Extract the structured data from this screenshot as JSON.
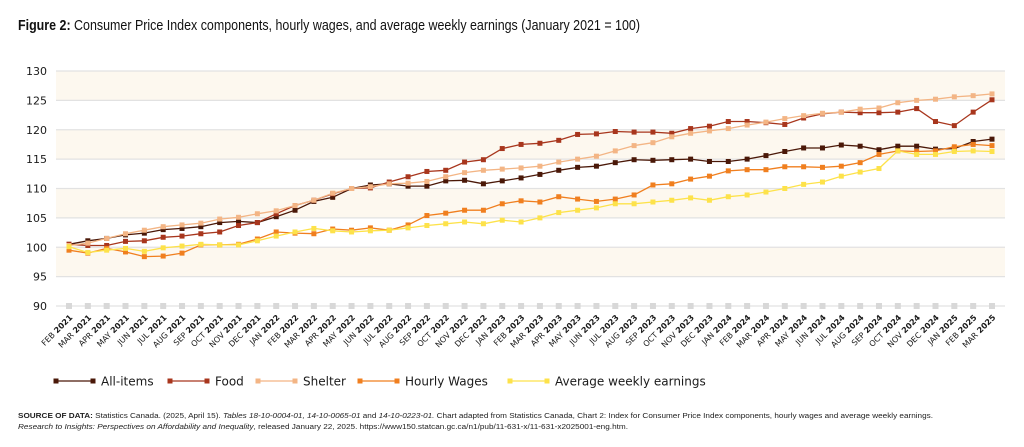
{
  "title": {
    "bold": "Figure 2:",
    "text": " Consumer Price Index components, hourly wages, and average weekly earnings (January 2021 = 100)"
  },
  "source": {
    "label": "SOURCE OF DATA:",
    "line1_a": " Statistics Canada. (2025, April 15). ",
    "line1_b": "Tables 18-10-0004-01, 14-10-0065-01",
    "line1_c": " and ",
    "line1_d": "14-10-0223-01.",
    "line1_e": "  Chart adapted from Statistics Canada, Chart 2: Index for Consumer Price Index components, hourly wages and average weekly earnings.",
    "line2_a": "Research to Insights: Perspectives on Affordability and Inequality",
    "line2_b": ", released January 22, 2025. https://www150.statcan.gc.ca/n1/pub/11-631-x/11-631-x2025001-eng.htm."
  },
  "chart_data": {
    "type": "line",
    "title": "Consumer Price Index components, hourly wages, and average weekly earnings (January 2021 = 100)",
    "xlabel": "",
    "ylabel": "",
    "ylim": [
      90,
      130
    ],
    "yticks": [
      90,
      95,
      100,
      105,
      110,
      115,
      120,
      125,
      130
    ],
    "grid": true,
    "alternating_bands": true,
    "band_color": "#fdf8ef",
    "legend_position": "bottom",
    "categories": [
      "FEB 2021",
      "MAR 2021",
      "APR 2021",
      "MAY 2021",
      "JUN 2021",
      "JUL 2021",
      "AUG 2021",
      "SEP 2021",
      "OCT 2021",
      "NOV 2021",
      "DEC 2021",
      "JAN 2022",
      "FEB 2022",
      "MAR 2022",
      "APR 2022",
      "MAY 2022",
      "JUN 2022",
      "JUL 2022",
      "AUG 2022",
      "SEP 2022",
      "OCT 2022",
      "NOV 2022",
      "DEC 2022",
      "JAN 2023",
      "FEB 2023",
      "MAR 2023",
      "APR 2023",
      "MAY 2023",
      "JUN 2023",
      "JUL 2023",
      "AUG 2023",
      "SEP 2023",
      "OCT 2023",
      "NOV 2023",
      "DEC 2023",
      "JAN 2024",
      "FEB 2024",
      "MAR 2024",
      "APR 2024",
      "MAY 2024",
      "JUN 2024",
      "JUL 2024",
      "AUG 2024",
      "SEP 2024",
      "OCT 2024",
      "NOV 2024",
      "DEC 2024",
      "JAN 2025",
      "FEB 2025",
      "MAR 2025"
    ],
    "series": [
      {
        "name": "All-items",
        "color": "#4a1808",
        "values": [
          100.5,
          101.1,
          101.5,
          102.1,
          102.4,
          103.0,
          103.2,
          103.5,
          104.2,
          104.4,
          104.2,
          105.2,
          106.3,
          107.8,
          108.5,
          110.0,
          110.6,
          110.8,
          110.4,
          110.4,
          111.3,
          111.4,
          110.8,
          111.3,
          111.8,
          112.4,
          113.1,
          113.6,
          113.8,
          114.4,
          114.9,
          114.8,
          114.9,
          115.0,
          114.6,
          114.6,
          115.0,
          115.6,
          116.3,
          116.9,
          116.9,
          117.4,
          117.2,
          116.6,
          117.2,
          117.2,
          116.7,
          116.8,
          118.0,
          118.4
        ]
      },
      {
        "name": "Food",
        "color": "#a8361d",
        "values": [
          100.5,
          100.3,
          100.3,
          101.0,
          101.1,
          101.7,
          101.9,
          102.3,
          102.6,
          103.7,
          104.2,
          105.7,
          107.1,
          108.0,
          109.1,
          110.0,
          110.1,
          111.1,
          112.0,
          112.9,
          113.1,
          114.5,
          114.9,
          116.8,
          117.5,
          117.7,
          118.2,
          119.2,
          119.3,
          119.7,
          119.6,
          119.6,
          119.4,
          120.2,
          120.6,
          121.4,
          121.4,
          121.2,
          120.9,
          122.0,
          122.7,
          123.0,
          122.9,
          122.9,
          123.0,
          123.6,
          121.4,
          120.7,
          123.0,
          125.1
        ]
      },
      {
        "name": "Shelter",
        "color": "#f3b585",
        "values": [
          100.3,
          100.7,
          101.5,
          102.3,
          102.9,
          103.5,
          103.8,
          104.1,
          104.8,
          105.1,
          105.7,
          106.2,
          107.1,
          108.0,
          109.2,
          110.0,
          110.3,
          110.8,
          110.9,
          111.2,
          112.0,
          112.7,
          113.1,
          113.3,
          113.5,
          113.8,
          114.5,
          115.0,
          115.5,
          116.4,
          117.3,
          117.8,
          118.8,
          119.4,
          119.8,
          120.2,
          120.8,
          121.3,
          121.9,
          122.4,
          122.8,
          123.0,
          123.5,
          123.7,
          124.6,
          125.0,
          125.2,
          125.6,
          125.8,
          126.1
        ]
      },
      {
        "name": "Hourly Wages",
        "color": "#f07f1f",
        "values": [
          99.5,
          99.0,
          99.8,
          99.2,
          98.4,
          98.5,
          99.0,
          100.4,
          100.4,
          100.5,
          101.4,
          102.6,
          102.4,
          102.3,
          103.1,
          102.9,
          103.3,
          102.9,
          103.8,
          105.4,
          105.8,
          106.3,
          106.3,
          107.4,
          107.9,
          107.7,
          108.6,
          108.2,
          107.8,
          108.2,
          108.9,
          110.6,
          110.8,
          111.6,
          112.1,
          113.0,
          113.2,
          113.2,
          113.7,
          113.7,
          113.6,
          113.8,
          114.4,
          115.8,
          116.4,
          116.3,
          116.4,
          117.1,
          117.5,
          117.3
        ]
      },
      {
        "name": "Average weekly earnings",
        "color": "#fde24a",
        "values": [
          100.1,
          99.1,
          99.5,
          99.8,
          99.3,
          99.9,
          100.2,
          100.5,
          100.4,
          100.4,
          101.1,
          101.9,
          102.6,
          103.2,
          102.8,
          102.6,
          102.8,
          102.9,
          103.3,
          103.7,
          104.0,
          104.3,
          104.0,
          104.6,
          104.3,
          105.0,
          105.9,
          106.3,
          106.7,
          107.4,
          107.4,
          107.7,
          108.0,
          108.4,
          108.0,
          108.6,
          108.9,
          109.4,
          110.0,
          110.7,
          111.1,
          112.1,
          112.8,
          113.4,
          116.4,
          115.8,
          115.8,
          116.3,
          116.4,
          116.3
        ]
      }
    ]
  }
}
